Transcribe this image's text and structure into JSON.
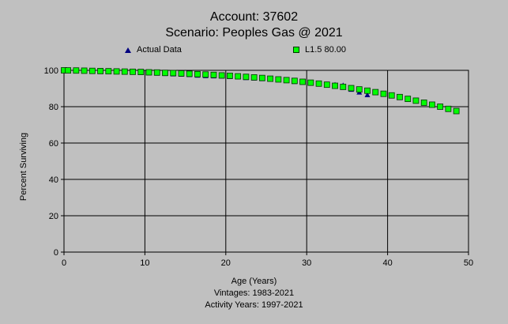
{
  "window": {
    "title_line1": "Account: 37602",
    "title_line2": "Scenario: Peoples Gas @ 2021",
    "xlabel": "Age (Years)",
    "vintages": "Vintages: 1983-2021",
    "activity_years": "Activity Years: 1997-2021"
  },
  "colors": {
    "background": "#c0c0c0",
    "plot_area": "#c0c0c0",
    "grid": "#000000",
    "actual_marker": "#00007f",
    "fit_marker_fill": "#00ff00",
    "fit_marker_edge": "#003300"
  },
  "chart_data": {
    "type": "scatter",
    "title": "Account: 37602",
    "subtitle": "Scenario: Peoples Gas @ 2021",
    "xlabel": "Age (Years)",
    "ylabel": "Percent Surviving",
    "xlim": [
      0,
      50
    ],
    "ylim": [
      0,
      100
    ],
    "x_ticks": [
      0,
      10,
      20,
      30,
      40,
      50
    ],
    "y_ticks": [
      0,
      20,
      40,
      60,
      80,
      100
    ],
    "grid": true,
    "legend_position": "top",
    "series": [
      {
        "name": "Actual Data",
        "marker": "triangle",
        "color": "#00007f",
        "x": [
          0,
          0.5,
          1.5,
          2.5,
          3.5,
          4.5,
          5.5,
          6.5,
          7.5,
          8.5,
          9.5,
          10.5,
          11.5,
          12.5,
          13.5,
          14.5,
          15.5,
          16.5,
          17.5,
          18.5,
          19.5,
          20.5,
          21.5,
          22.5,
          23.5,
          24.5,
          25.5,
          26.5,
          27.5,
          28.5,
          29.5,
          30.5,
          31.5,
          32.5,
          33.5,
          34.5,
          35.5,
          36.5,
          37.5
        ],
        "y": [
          100,
          99.9,
          99.8,
          99.7,
          99.6,
          99.5,
          99.4,
          99.3,
          99.1,
          99.0,
          98.8,
          98.6,
          98.4,
          98.2,
          98.0,
          97.8,
          97.6,
          97.3,
          97.0,
          96.9,
          96.8,
          96.6,
          96.3,
          96.0,
          95.7,
          95.4,
          95.1,
          94.8,
          94.4,
          93.8,
          93.4,
          93.0,
          92.6,
          92.3,
          92.1,
          91.8,
          89.5,
          88.0,
          86.5
        ]
      },
      {
        "name": "L1.5 80.00",
        "marker": "square",
        "color": "#00ff00",
        "x": [
          0,
          0.5,
          1.5,
          2.5,
          3.5,
          4.5,
          5.5,
          6.5,
          7.5,
          8.5,
          9.5,
          10.5,
          11.5,
          12.5,
          13.5,
          14.5,
          15.5,
          16.5,
          17.5,
          18.5,
          19.5,
          20.5,
          21.5,
          22.5,
          23.5,
          24.5,
          25.5,
          26.5,
          27.5,
          28.5,
          29.5,
          30.5,
          31.5,
          32.5,
          33.5,
          34.5,
          35.5,
          36.5,
          37.5,
          38.5,
          39.5,
          40.5,
          41.5,
          42.5,
          43.5,
          44.5,
          45.5,
          46.5,
          47.5,
          48.5
        ],
        "y": [
          100,
          99.95,
          99.9,
          99.8,
          99.7,
          99.6,
          99.5,
          99.4,
          99.3,
          99.2,
          99.1,
          98.9,
          98.8,
          98.6,
          98.5,
          98.3,
          98.1,
          97.9,
          97.7,
          97.5,
          97.2,
          97.0,
          96.7,
          96.4,
          96.1,
          95.8,
          95.4,
          95.0,
          94.6,
          94.2,
          93.7,
          93.2,
          92.7,
          92.1,
          91.5,
          90.9,
          90.2,
          89.5,
          88.8,
          88.0,
          87.1,
          86.2,
          85.3,
          84.3,
          83.3,
          82.2,
          81.1,
          80.0,
          78.8,
          77.6
        ]
      }
    ]
  }
}
